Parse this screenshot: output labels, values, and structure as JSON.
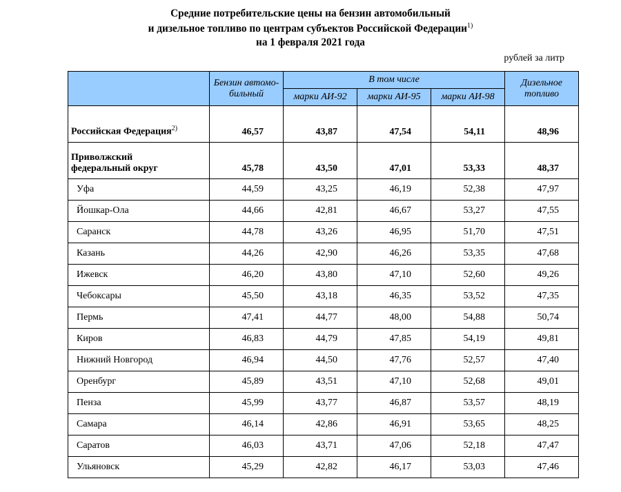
{
  "title_line1": "Средние потребительские цены на бензин автомобильный",
  "title_line2_pre": "и дизельное топливо по центрам субъектов Российской Федерации",
  "title_line2_sup": "1)",
  "title_line3": "на 1 февраля 2021 года",
  "unit": "рублей за литр",
  "header": {
    "benzin": "Бензин автомо-бильный",
    "vtomchisle": "В том числе",
    "ai92": "марки АИ-92",
    "ai95": "марки АИ-95",
    "ai98": "марки АИ-98",
    "diesel": "Дизельное топливо"
  },
  "rows": [
    {
      "type": "summary",
      "bold": true,
      "label": "Российская Федерация",
      "sup": "2)",
      "v": [
        "46,57",
        "43,87",
        "47,54",
        "54,11",
        "48,96"
      ]
    },
    {
      "type": "summary",
      "bold": true,
      "label": "Приволжский федеральный округ",
      "v": [
        "45,78",
        "43,50",
        "47,01",
        "53,33",
        "48,37"
      ]
    },
    {
      "type": "city",
      "label": "Уфа",
      "v": [
        "44,59",
        "43,25",
        "46,19",
        "52,38",
        "47,97"
      ]
    },
    {
      "type": "city",
      "label": "Йошкар-Ола",
      "v": [
        "44,66",
        "42,81",
        "46,67",
        "53,27",
        "47,55"
      ]
    },
    {
      "type": "city",
      "label": "Саранск",
      "v": [
        "44,78",
        "43,26",
        "46,95",
        "51,70",
        "47,51"
      ]
    },
    {
      "type": "city",
      "label": "Казань",
      "v": [
        "44,26",
        "42,90",
        "46,26",
        "53,35",
        "47,68"
      ]
    },
    {
      "type": "city",
      "label": "Ижевск",
      "v": [
        "46,20",
        "43,80",
        "47,10",
        "52,60",
        "49,26"
      ]
    },
    {
      "type": "city",
      "label": "Чебоксары",
      "v": [
        "45,50",
        "43,18",
        "46,35",
        "53,52",
        "47,35"
      ]
    },
    {
      "type": "city",
      "label": "Пермь",
      "v": [
        "47,41",
        "44,77",
        "48,00",
        "54,88",
        "50,74"
      ]
    },
    {
      "type": "city",
      "label": "Киров",
      "v": [
        "46,83",
        "44,79",
        "47,85",
        "54,19",
        "49,81"
      ]
    },
    {
      "type": "city",
      "label": "Нижний Новгород",
      "v": [
        "46,94",
        "44,50",
        "47,76",
        "52,57",
        "47,40"
      ]
    },
    {
      "type": "city",
      "label": "Оренбург",
      "v": [
        "45,89",
        "43,51",
        "47,10",
        "52,68",
        "49,01"
      ]
    },
    {
      "type": "city",
      "label": "Пенза",
      "v": [
        "45,99",
        "43,77",
        "46,87",
        "53,57",
        "48,19"
      ]
    },
    {
      "type": "city",
      "label": "Самара",
      "v": [
        "46,14",
        "42,86",
        "46,91",
        "53,65",
        "48,25"
      ]
    },
    {
      "type": "city",
      "label": "Саратов",
      "v": [
        "46,03",
        "43,71",
        "47,06",
        "52,18",
        "47,47"
      ]
    },
    {
      "type": "city",
      "label": "Ульяновск",
      "v": [
        "45,29",
        "42,82",
        "46,17",
        "53,03",
        "47,46"
      ]
    }
  ],
  "style": {
    "header_bg": "#99ccff",
    "border_color": "#000000",
    "background_color": "#ffffff"
  }
}
